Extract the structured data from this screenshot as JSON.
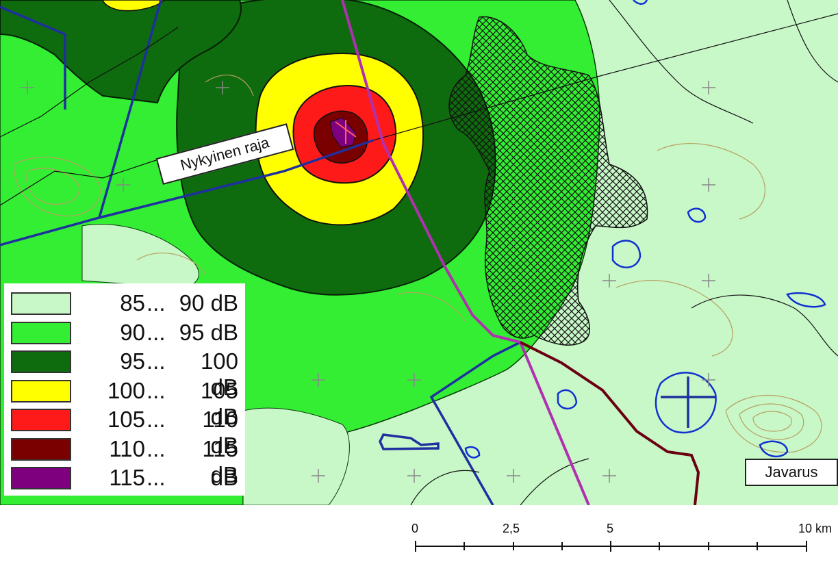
{
  "colors": {
    "85-90": "#c8f7c8",
    "90-95": "#33ee33",
    "95-100": "#0e6b0e",
    "100-105": "#ffff00",
    "105-110": "#ff1a1a",
    "110-115": "#7a0000",
    "115+": "#7f007f",
    "boundary": "#1f2f9f",
    "road": "#b030b0",
    "track": "#6a0010",
    "contour": "#b8a060",
    "water": "#1030d0"
  },
  "legend": [
    {
      "lo": "85",
      "sep": "...",
      "hi": "90 dB",
      "color_key": "85-90"
    },
    {
      "lo": "90",
      "sep": "...",
      "hi": "95 dB",
      "color_key": "90-95"
    },
    {
      "lo": "95",
      "sep": "...",
      "hi": "100 dB",
      "color_key": "95-100"
    },
    {
      "lo": "100",
      "sep": "...",
      "hi": "105 dB",
      "color_key": "100-105"
    },
    {
      "lo": "105",
      "sep": "...",
      "hi": "110 dB",
      "color_key": "105-110"
    },
    {
      "lo": "110",
      "sep": "...",
      "hi": "115 dB",
      "color_key": "110-115"
    },
    {
      "lo": "115",
      "sep": "...",
      "hi": "dB",
      "color_key": "115+"
    }
  ],
  "labels": {
    "boundary": "Nykyinen raja",
    "place": "Javarus"
  },
  "scale": {
    "ticks": [
      "0",
      "2,5",
      "5",
      "10 km"
    ]
  }
}
